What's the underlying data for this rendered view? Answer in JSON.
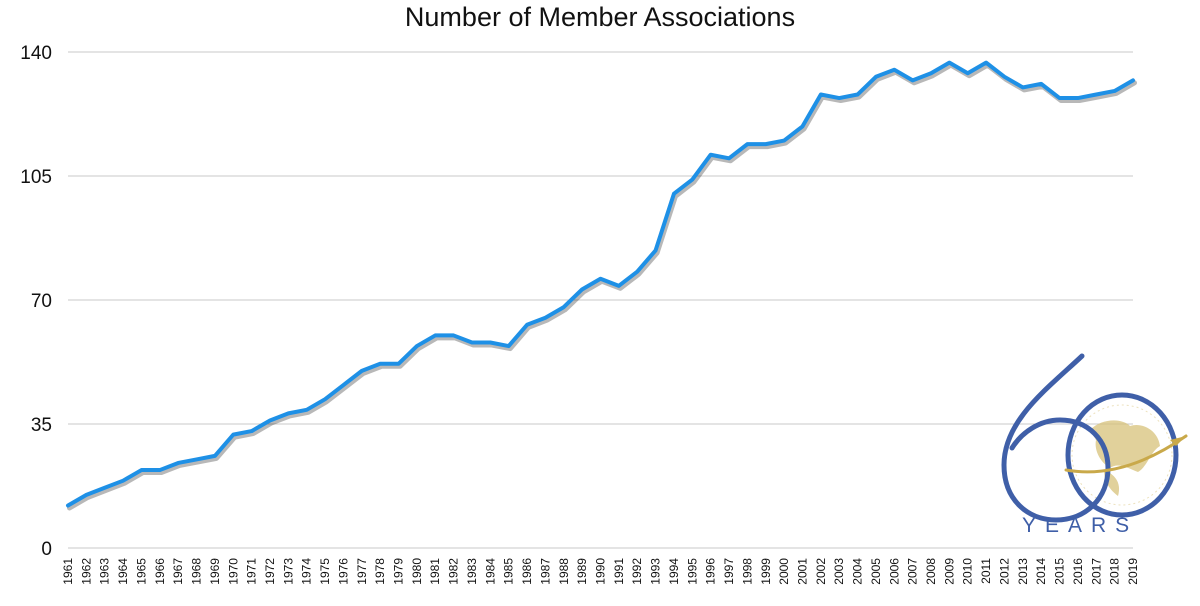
{
  "chart_data": {
    "type": "line",
    "title": "Number of Member Associations",
    "xlabel": "",
    "ylabel": "",
    "ylim": [
      0,
      140
    ],
    "yticks": [
      "0",
      "35",
      "70",
      "105",
      "140"
    ],
    "grid": true,
    "legend": "none",
    "x": [
      "1961",
      "1962",
      "1963",
      "1964",
      "1965",
      "1966",
      "1967",
      "1968",
      "1969",
      "1970",
      "1971",
      "1972",
      "1973",
      "1974",
      "1975",
      "1976",
      "1977",
      "1978",
      "1979",
      "1980",
      "1981",
      "1982",
      "1983",
      "1984",
      "1985",
      "1986",
      "1987",
      "1988",
      "1989",
      "1990",
      "1991",
      "1992",
      "1993",
      "1994",
      "1995",
      "1996",
      "1997",
      "1998",
      "1999",
      "2000",
      "2001",
      "2002",
      "2003",
      "2004",
      "2005",
      "2006",
      "2007",
      "2008",
      "2009",
      "2010",
      "2011",
      "2012",
      "2013",
      "2014",
      "2015",
      "2016",
      "2017",
      "2018",
      "2019"
    ],
    "series": [
      {
        "values": [
          12,
          15,
          17,
          19,
          22,
          22,
          24,
          25,
          26,
          32,
          33,
          36,
          38,
          39,
          42,
          46,
          50,
          52,
          52,
          57,
          60,
          60,
          58,
          58,
          57,
          63,
          65,
          68,
          73,
          76,
          74,
          78,
          84,
          100,
          104,
          111,
          110,
          114,
          114,
          115,
          119,
          128,
          127,
          128,
          133,
          135,
          132,
          134,
          137,
          134,
          137,
          133,
          130,
          131,
          127,
          127,
          128,
          129,
          132
        ],
        "color": "#1e90e6"
      }
    ]
  },
  "logo": {
    "number": "60",
    "caption": "YEARS",
    "colors": {
      "primary": "#3f5fa8",
      "accent": "#c9a94a"
    }
  }
}
